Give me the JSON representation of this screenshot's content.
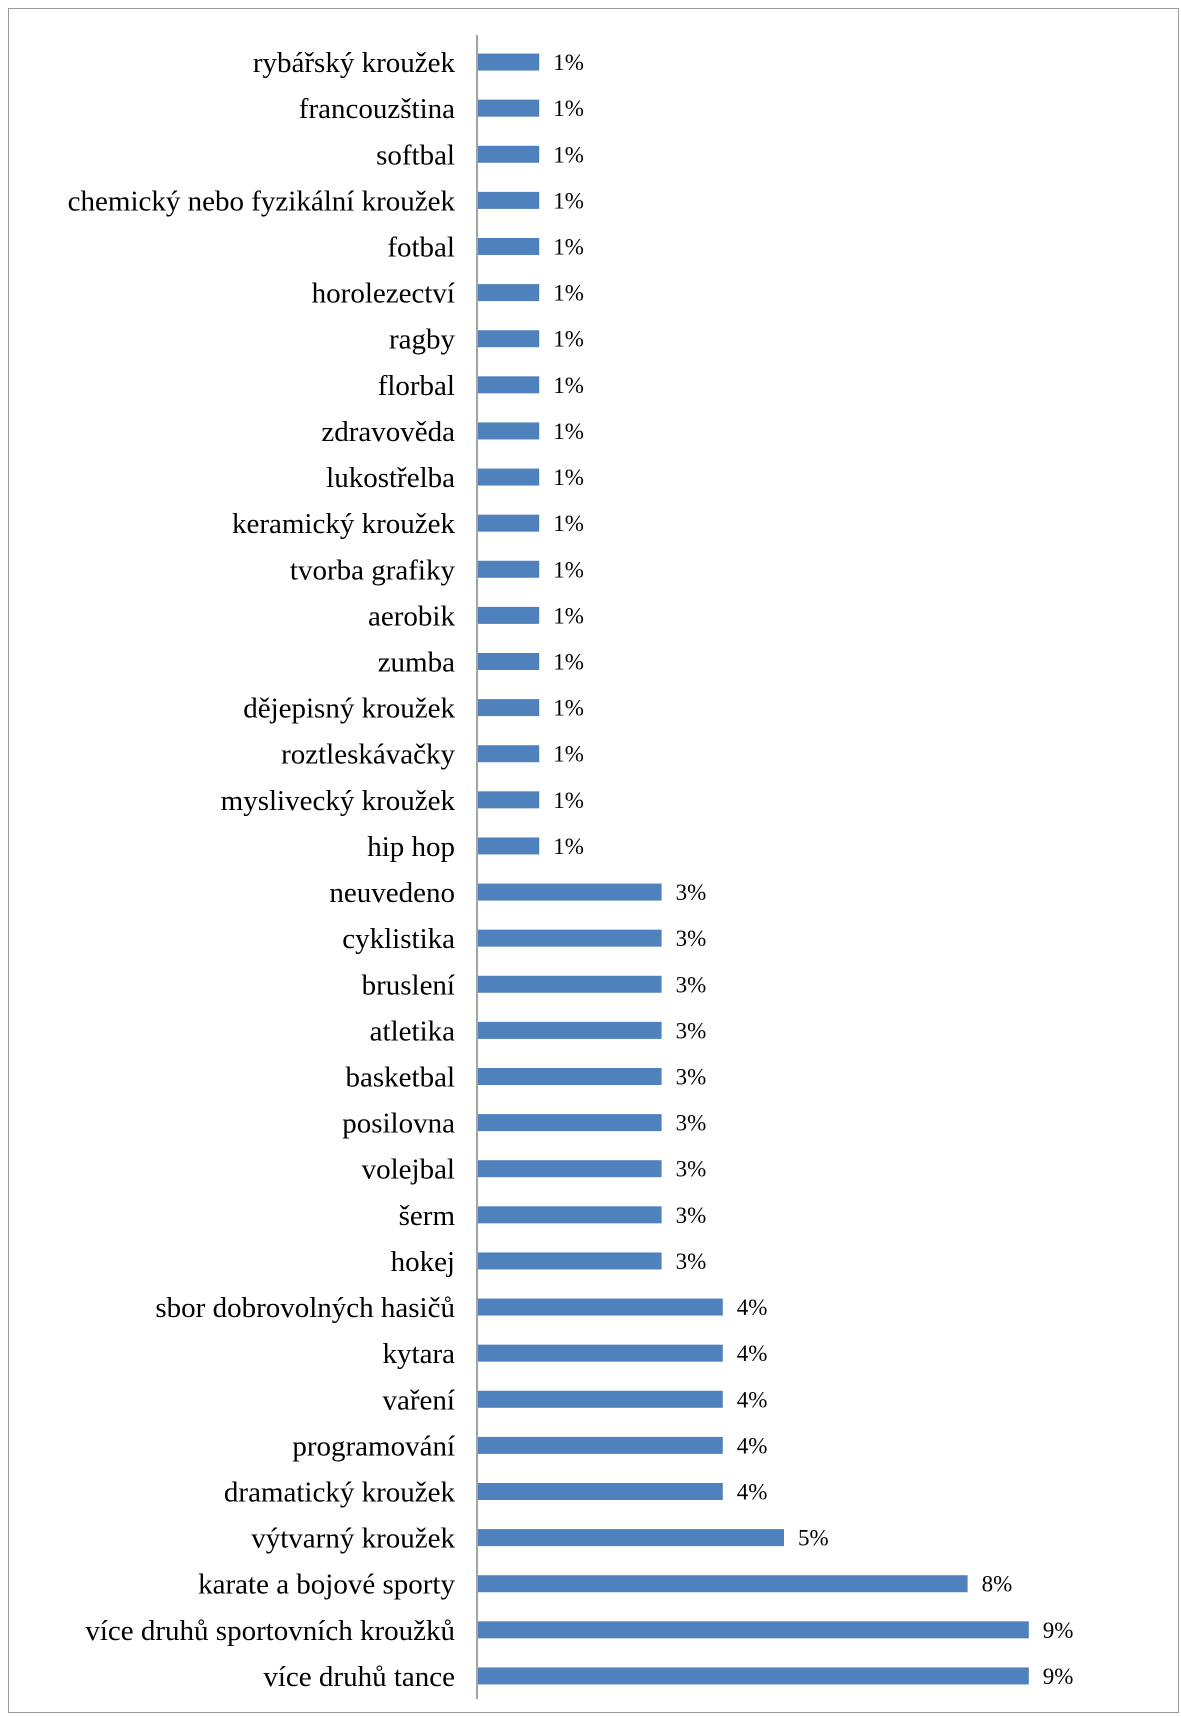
{
  "chart_data": {
    "type": "bar",
    "orientation": "horizontal",
    "bar_color": "#4f81bd",
    "axis_color": "#868686",
    "value_suffix": "%",
    "grid": false,
    "legend": "none",
    "xlim": [
      0,
      9
    ],
    "categories": [
      "rybářský kroužek",
      "francouzština",
      "softbal",
      "chemický nebo fyzikální kroužek",
      "fotbal",
      "horolezectví",
      "ragby",
      "florbal",
      "zdravověda",
      "lukostřelba",
      "keramický kroužek",
      "tvorba grafiky",
      "aerobik",
      "zumba",
      "dějepisný kroužek",
      "roztleskávačky",
      "myslivecký kroužek",
      "hip hop",
      "neuvedeno",
      "cyklistika",
      "bruslení",
      "atletika",
      "basketbal",
      "posilovna",
      "volejbal",
      "šerm",
      "hokej",
      "sbor dobrovolných hasičů",
      "kytara",
      "vaření",
      "programování",
      "dramatický kroužek",
      "výtvarný kroužek",
      "karate a  bojové sporty",
      "více druhů sportovních kroužků",
      "více druhů tance"
    ],
    "values": [
      1,
      1,
      1,
      1,
      1,
      1,
      1,
      1,
      1,
      1,
      1,
      1,
      1,
      1,
      1,
      1,
      1,
      1,
      3,
      3,
      3,
      3,
      3,
      3,
      3,
      3,
      3,
      4,
      4,
      4,
      4,
      4,
      5,
      8,
      9,
      9
    ],
    "data_labels": [
      "1%",
      "1%",
      "1%",
      "1%",
      "1%",
      "1%",
      "1%",
      "1%",
      "1%",
      "1%",
      "1%",
      "1%",
      "1%",
      "1%",
      "1%",
      "1%",
      "1%",
      "1%",
      "3%",
      "3%",
      "3%",
      "3%",
      "3%",
      "3%",
      "3%",
      "3%",
      "3%",
      "4%",
      "4%",
      "4%",
      "4%",
      "4%",
      "5%",
      "8%",
      "9%",
      "9%"
    ]
  }
}
